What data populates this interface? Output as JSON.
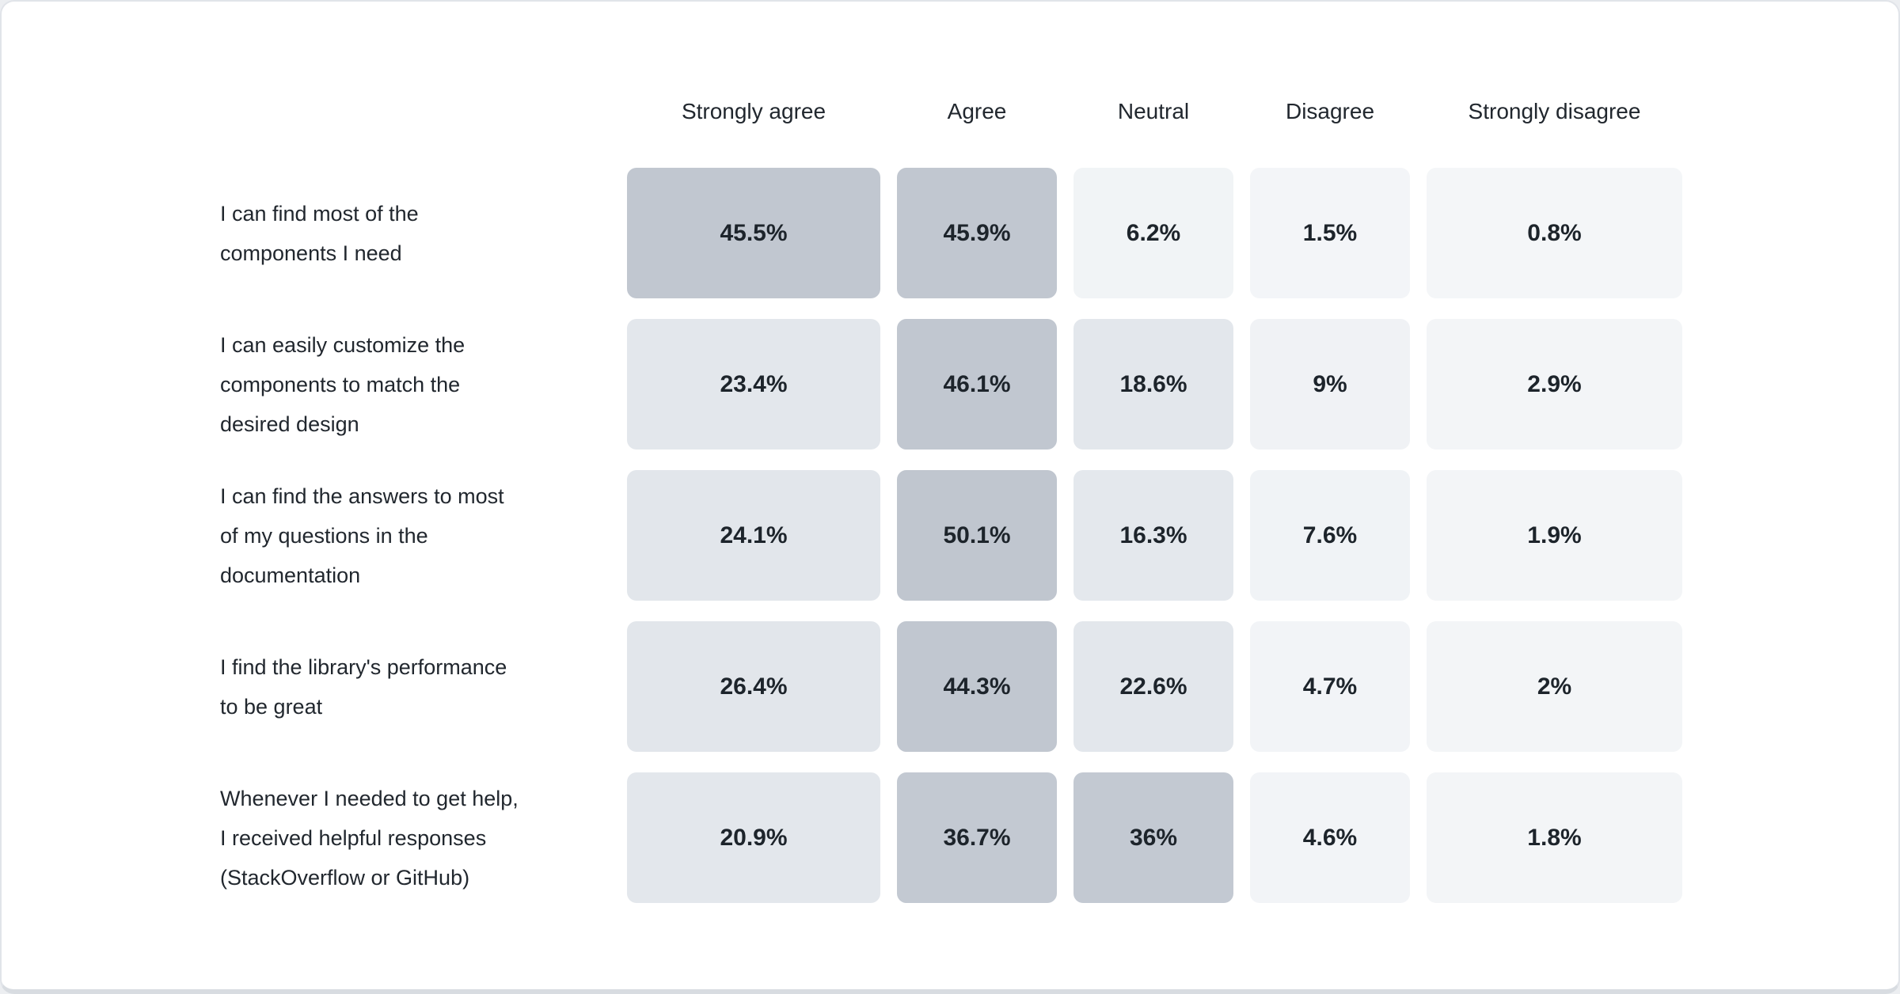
{
  "chart_data": {
    "type": "heatmap",
    "title": "",
    "unit": "%",
    "legend_position": "none",
    "grid": false,
    "columns": [
      "Strongly agree",
      "Agree",
      "Neutral",
      "Disagree",
      "Strongly disagree"
    ],
    "rows": [
      {
        "label": "I can find most of the\ncomponents I need",
        "values": [
          45.5,
          45.9,
          6.2,
          1.5,
          0.8
        ],
        "display": [
          "45.5%",
          "45.9%",
          "6.2%",
          "1.5%",
          "0.8%"
        ]
      },
      {
        "label": "I can easily customize the\ncomponents to match the\ndesired design",
        "values": [
          23.4,
          46.1,
          18.6,
          9,
          2.9
        ],
        "display": [
          "23.4%",
          "46.1%",
          "18.6%",
          "9%",
          "2.9%"
        ]
      },
      {
        "label": "I can find the answers to most\nof my questions in the\ndocumentation",
        "values": [
          24.1,
          50.1,
          16.3,
          7.6,
          1.9
        ],
        "display": [
          "24.1%",
          "50.1%",
          "16.3%",
          "7.6%",
          "1.9%"
        ]
      },
      {
        "label": "I find the library's performance\nto be great",
        "values": [
          26.4,
          44.3,
          22.6,
          4.7,
          2
        ],
        "display": [
          "26.4%",
          "44.3%",
          "22.6%",
          "4.7%",
          "2%"
        ]
      },
      {
        "label": "Whenever I needed to get help,\nI received helpful responses\n(StackOverflow or GitHub)",
        "values": [
          20.9,
          36.7,
          36,
          4.6,
          1.8
        ],
        "display": [
          "20.9%",
          "36.7%",
          "36%",
          "4.6%",
          "1.8%"
        ]
      }
    ],
    "palette": {
      "description": "percentage value to cell background color anchors",
      "anchors": [
        [
          0,
          "#f4f6f8"
        ],
        [
          10,
          "#eff2f5"
        ],
        [
          15,
          "#e4e8ed"
        ],
        [
          27,
          "#e2e6eb"
        ],
        [
          36,
          "#c3c9d2"
        ],
        [
          55,
          "#bfc5ce"
        ]
      ],
      "text_color": "#1d242b"
    },
    "colors": {
      "card_background": "#ffffff",
      "card_border": "#e1e4e9",
      "card_bottom_edge": "#d8dce1",
      "label_text": "#21272e"
    }
  }
}
